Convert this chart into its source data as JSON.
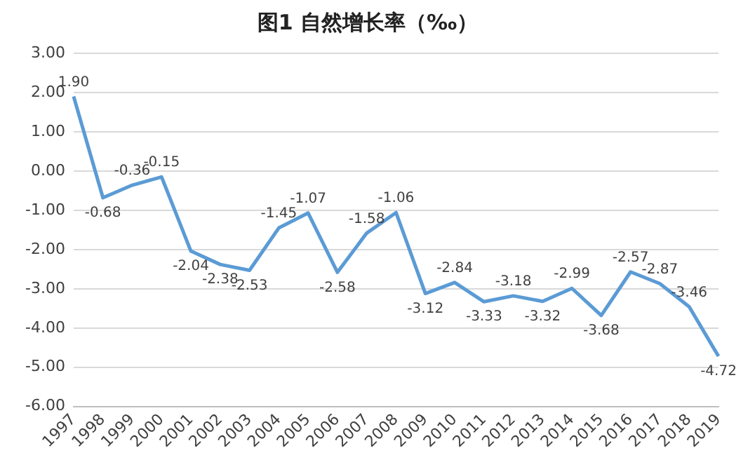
{
  "chart_data": {
    "type": "line",
    "title": "图1 自然增长率（‰）",
    "categories": [
      "1997",
      "1998",
      "1999",
      "2000",
      "2001",
      "2002",
      "2003",
      "2004",
      "2005",
      "2006",
      "2007",
      "2008",
      "2009",
      "2010",
      "2011",
      "2012",
      "2013",
      "2014",
      "2015",
      "2016",
      "2017",
      "2018",
      "2019"
    ],
    "series": [
      {
        "color": "#5b9bd5",
        "values": [
          1.9,
          -0.68,
          -0.36,
          -0.15,
          -2.04,
          -2.38,
          -2.53,
          -1.45,
          -1.07,
          -2.58,
          -1.58,
          -1.06,
          -3.12,
          -2.84,
          -3.33,
          -3.18,
          -3.32,
          -2.99,
          -3.68,
          -2.57,
          -2.87,
          -3.46,
          -4.72
        ],
        "value_labels": [
          "1.90",
          "-0.68",
          "-0.36",
          "-0.15",
          "-2.04",
          "-2.38",
          "-2.53",
          "-1.45",
          "-1.07",
          "-2.58",
          "-1.58",
          "-1.06",
          "-3.12",
          "-2.84",
          "-3.33",
          "-3.18",
          "-3.32",
          "-2.99",
          "-3.68",
          "-2.57",
          "-2.87",
          "-3.46",
          "-4.72"
        ]
      }
    ],
    "ylim": [
      -6,
      3
    ],
    "yticks": [
      {
        "value": 3,
        "label": "3.00"
      },
      {
        "value": 2,
        "label": "2.00"
      },
      {
        "value": 1,
        "label": "1.00"
      },
      {
        "value": 0,
        "label": "0.00"
      },
      {
        "value": -1,
        "label": "-1.00"
      },
      {
        "value": -2,
        "label": "-2.00"
      },
      {
        "value": -3,
        "label": "-3.00"
      },
      {
        "value": -4,
        "label": "-4.00"
      },
      {
        "value": -5,
        "label": "-5.00"
      },
      {
        "value": -6,
        "label": "-6.00"
      }
    ],
    "grid": "y",
    "legend": false,
    "marker": "none",
    "line_style": "solid"
  }
}
